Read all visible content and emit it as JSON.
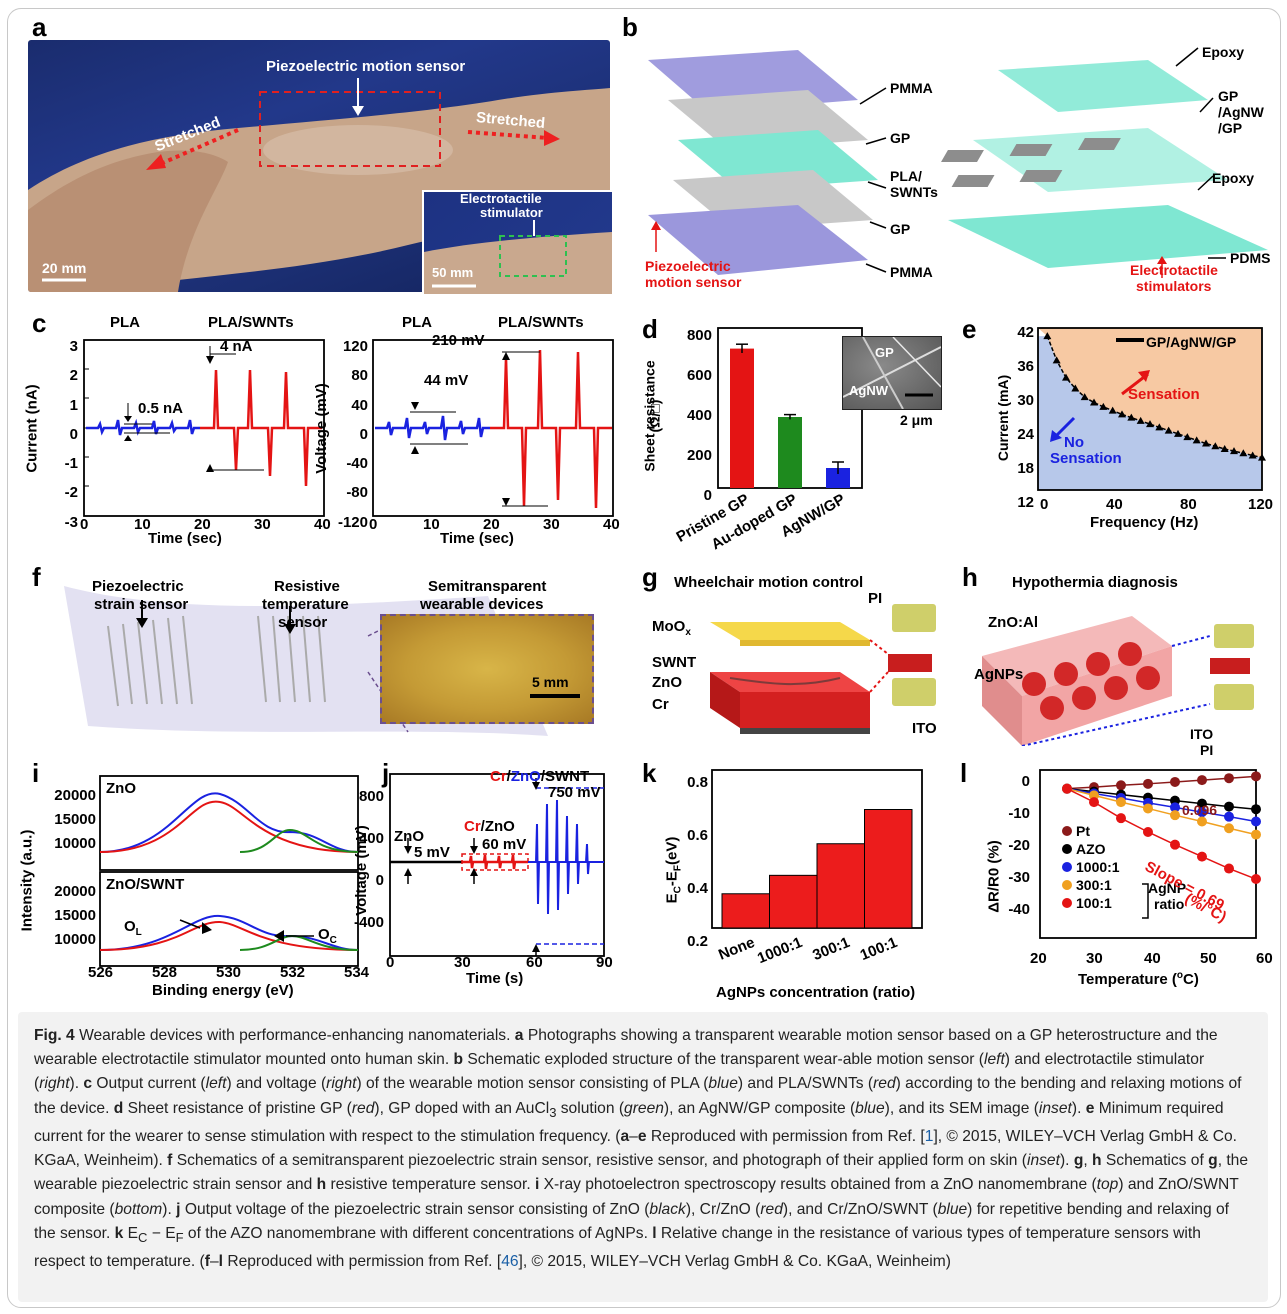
{
  "panels": {
    "a": {
      "label": "a",
      "sensor_label": "Piezoelectric motion sensor",
      "stretched_left": "Stretched",
      "stretched_right": "Stretched",
      "scale_bar": "20 mm",
      "inset_label_line1": "Electrotactile",
      "inset_label_line2": "stimulator",
      "inset_scale_bar": "50 mm"
    },
    "b": {
      "label": "b",
      "left_layers": [
        "PMMA",
        "GP",
        "PLA/",
        "SWNTs",
        "GP",
        "PMMA"
      ],
      "left_caption_line1": "Piezoelectric",
      "left_caption_line2": "motion sensor",
      "right_layers": [
        "Epoxy",
        "GP",
        "/AgNW",
        "/GP",
        "Epoxy",
        "PDMS"
      ],
      "right_caption": "Electrotactile",
      "right_caption_line2": "stimulators"
    },
    "c": {
      "label": "c",
      "left": {
        "series_names": [
          "PLA",
          "PLA/SWNTs"
        ],
        "ylabel": "Current (nA)",
        "xlabel": "Time (sec)",
        "yticks": [
          "3",
          "2",
          "1",
          "0",
          "-1",
          "-2",
          "-3"
        ],
        "xticks": [
          "0",
          "10",
          "20",
          "30",
          "40"
        ],
        "annot_small": "0.5 nA",
        "annot_large": "4 nA"
      },
      "right": {
        "series_names": [
          "PLA",
          "PLA/SWNTs"
        ],
        "ylabel": "Voltage (mV)",
        "xlabel": "Time (sec)",
        "yticks": [
          "120",
          "80",
          "40",
          "0",
          "-40",
          "-80",
          "-120"
        ],
        "xticks": [
          "0",
          "10",
          "20",
          "30",
          "40"
        ],
        "annot_small": "44 mV",
        "annot_large": "210 mV"
      }
    },
    "d": {
      "label": "d",
      "ylabel_line1": "Sheet resistance",
      "ylabel_line2": "(Ω/□)",
      "yticks": [
        "800",
        "600",
        "400",
        "200",
        "0"
      ],
      "inset_gp": "GP",
      "inset_agnw": "AgNW",
      "inset_scale": "2 μm"
    },
    "e": {
      "label": "e",
      "legend": "GP/AgNW/GP",
      "ylabel": "Current (mA)",
      "xlabel": "Frequency (Hz)",
      "yticks": [
        "42",
        "36",
        "30",
        "24",
        "18",
        "12"
      ],
      "xticks": [
        "0",
        "40",
        "80",
        "120"
      ],
      "sensation": "Sensation",
      "no": "No",
      "no_sensation": "Sensation"
    },
    "f": {
      "label": "f",
      "piezo_line1": "Piezoelectric",
      "piezo_line2": "strain sensor",
      "resist_line1": "Resistive",
      "resist_line2": "temperature",
      "resist_line3": "sensor",
      "semi_line1": "Semitransparent",
      "semi_line2": "wearable devices",
      "scale": "5 mm"
    },
    "g": {
      "label": "g",
      "title": "Wheelchair motion control",
      "moox": "MoO",
      "moox_sub": "x",
      "swnt": "SWNT",
      "zno": "ZnO",
      "cr": "Cr",
      "pi": "PI",
      "ito": "ITO"
    },
    "h": {
      "label": "h",
      "title": "Hypothermia diagnosis",
      "znoal": "ZnO:Al",
      "agnps": "AgNPs",
      "ito": "ITO",
      "pi": "PI"
    },
    "i": {
      "label": "i",
      "top_title": "ZnO",
      "bottom_title": "ZnO/SWNT",
      "ylabel": "Intensity (a.u.)",
      "xlabel": "Binding energy (eV)",
      "top_yticks": [
        "20000",
        "15000",
        "10000"
      ],
      "bottom_yticks": [
        "20000",
        "15000",
        "10000"
      ],
      "xticks": [
        "526",
        "528",
        "530",
        "532",
        "534"
      ],
      "ol": "O",
      "ol_sub": "L",
      "oc": "O",
      "oc_sub": "C"
    },
    "j": {
      "label": "j",
      "ylabel": "Voltage (mV)",
      "xlabel": "Time (s)",
      "yticks": [
        "800",
        "400",
        "0",
        "-400"
      ],
      "xticks": [
        "0",
        "30",
        "60",
        "90"
      ],
      "zno": "ZnO",
      "zno_val": "5 mV",
      "crzno_cr": "Cr",
      "crzno_zno": "/ZnO",
      "crzno_val": "60 mV",
      "t_cr": "Cr",
      "t_zno": "ZnO",
      "t_swnt": "/SWNT",
      "t_slash": "/",
      "t_val": "750 mV"
    },
    "k": {
      "label": "k",
      "ylabel": "E",
      "yticks": [
        "0.8",
        "0.6",
        "0.4",
        "0.2"
      ],
      "xlabel": "AgNPs concentration (ratio)"
    },
    "l": {
      "label": "l",
      "ylabel": "ΔR/R0 (%)",
      "xlabel": "Temperature (",
      "yticks": [
        "0",
        "-10",
        "-20",
        "-30",
        "-40"
      ],
      "xticks": [
        "20",
        "30",
        "40",
        "50",
        "60"
      ],
      "legend": [
        "Pt",
        "AZO",
        "1000:1",
        "300:1",
        "100:1"
      ],
      "agnp": "AgNP",
      "ratio": "ratio",
      "pt_slope": "0.096",
      "slope": "Slope = 0.69",
      "slope_unit": "(%/°C)"
    }
  },
  "colors": {
    "blue": "#1a22e0",
    "red": "#e41414",
    "green": "#1e8a1e",
    "orange_fill": "#f7c9a3",
    "blue_fill": "#b7c8ea",
    "mint": "#7fe7d2",
    "violet": "#9b97dc"
  },
  "chart_data": [
    {
      "type": "bar",
      "panel": "d",
      "categories": [
        "Pristine GP",
        "Au-doped GP",
        "AgNW/GP"
      ],
      "values": [
        697,
        355,
        100
      ],
      "errors": [
        22,
        12,
        30
      ],
      "ylim": [
        0,
        800
      ],
      "ylabel": "Sheet resistance (Ω/□)",
      "colors": [
        "#e41414",
        "#1e8a1e",
        "#1a22e0"
      ]
    },
    {
      "type": "line",
      "panel": "e",
      "series": [
        {
          "name": "GP/AgNW/GP",
          "x": [
            5,
            10,
            15,
            20,
            25,
            30,
            35,
            40,
            45,
            50,
            55,
            60,
            65,
            70,
            75,
            80,
            85,
            90,
            95,
            100,
            105,
            110,
            115,
            120
          ],
          "values": [
            40.5,
            36.0,
            32.8,
            30.8,
            29.2,
            28.2,
            27.4,
            26.7,
            26.0,
            25.4,
            24.8,
            24.2,
            23.6,
            23.0,
            22.4,
            21.8,
            21.2,
            20.6,
            20.1,
            19.6,
            19.2,
            18.8,
            18.4,
            18.0
          ]
        }
      ],
      "xlim": [
        0,
        120
      ],
      "ylim": [
        12,
        42
      ],
      "xlabel": "Frequency (Hz)",
      "ylabel": "Current (mA)"
    },
    {
      "type": "bar",
      "panel": "k",
      "categories": [
        "None",
        "1000:1",
        "300:1",
        "100:1"
      ],
      "values": [
        0.33,
        0.4,
        0.52,
        0.65
      ],
      "ylim": [
        0.2,
        0.8
      ],
      "xlabel": "AgNPs concentration (ratio)"
    },
    {
      "type": "line",
      "panel": "l",
      "x": [
        25,
        30,
        35,
        40,
        45,
        50,
        55,
        60
      ],
      "series": [
        {
          "name": "Pt",
          "values": [
            0,
            0.4,
            0.9,
            1.3,
            1.8,
            2.3,
            2.8,
            3.3
          ]
        },
        {
          "name": "AZO",
          "values": [
            0,
            -0.8,
            -1.6,
            -2.4,
            -3.2,
            -4.0,
            -4.8,
            -5.5
          ]
        },
        {
          "name": "1000:1",
          "values": [
            0,
            -1.3,
            -2.5,
            -3.8,
            -5.0,
            -6.3,
            -7.5,
            -8.8
          ]
        },
        {
          "name": "300:1",
          "values": [
            0,
            -1.8,
            -3.6,
            -5.3,
            -7.1,
            -8.8,
            -10.6,
            -12.3
          ]
        },
        {
          "name": "100:1",
          "values": [
            0,
            -3.6,
            -7.9,
            -11.6,
            -15.0,
            -18.2,
            -21.4,
            -24.2
          ]
        }
      ],
      "xlim": [
        20,
        60
      ],
      "ylim": [
        -40,
        5
      ],
      "xlabel": "Temperature (°C)",
      "ylabel": "ΔR/R0 (%)"
    }
  ],
  "caption": {
    "fig": "Fig. 4",
    "title": " Wearable devices with performance-enhancing nanomaterials.",
    "body_html": "<b>a</b> Photographs showing a transparent wearable motion sensor based on a GP heterostructure and the wearable electrotactile stimulator mounted onto human skin. <b>b</b> Schematic exploded structure of the transparent wear-able motion sensor (<i>left</i>) and electrotactile stimulator (<i>right</i>). <b>c</b> Output current (<i>left</i>) and voltage (<i>right</i>) of the wearable motion sensor consisting of PLA (<i>blue</i>) and PLA/SWNTs (<i>red</i>) according to the bending and relaxing motions of the device. <b>d</b> Sheet resistance of pristine GP (<i>red</i>), GP doped with an AuCl<sub>3</sub> solution (<i>green</i>), an AgNW/GP composite (<i>blue</i>), and its SEM image (<i>inset</i>). <b>e</b> Minimum required current for the wearer to sense stimulation with respect to the stimulation frequency. (<b>a</b>–<b>e</b> Reproduced with permission from Ref. [<span class=\"cite\">1</span>], © 2015, WILEY–VCH Verlag GmbH &amp; Co. KGaA, Weinheim). <b>f</b> Schematics of a semitransparent piezoelectric strain sensor, resistive sensor, and photograph of their applied form on skin (<i>inset</i>). <b>g</b>, <b>h</b> Schematics of <b>g</b>, the wearable piezoelectric strain sensor and <b>h</b> resistive temperature sensor. <b>i</b> X-ray photoelectron spectroscopy results obtained from a ZnO nanomembrane (<i>top</i>) and ZnO/SWNT composite (<i>bottom</i>). <b>j</b> Output voltage of the piezoelectric strain sensor consisting of ZnO (<i>black</i>), Cr/ZnO (<i>red</i>), and Cr/ZnO/SWNT (<i>blue</i>) for repetitive bending and relaxing of the sensor. <b>k</b> E<sub>C</sub> − E<sub>F</sub> of the AZO nanomembrane with different concentrations of AgNPs. <b>l</b> Relative change in the resistance of various types of temperature sensors with respect to temperature. (<b>f</b>–<b>l</b> Reproduced with permission from Ref. [<span class=\"cite\">46</span>], © 2015, WILEY–VCH Verlag GmbH &amp; Co. KGaA, Weinheim)"
  }
}
